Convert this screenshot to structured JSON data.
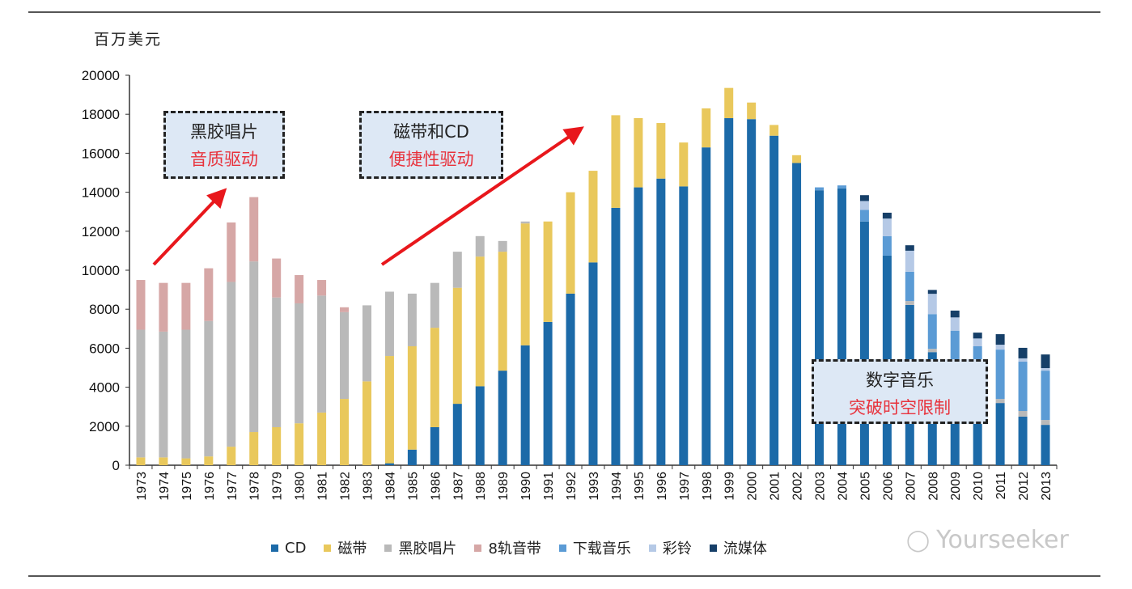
{
  "chart_data": {
    "type": "bar",
    "stacked": true,
    "ylabel": "百万美元",
    "ylim": [
      0,
      20000
    ],
    "yticks": [
      0,
      2000,
      4000,
      6000,
      8000,
      10000,
      12000,
      14000,
      16000,
      18000,
      20000
    ],
    "grid": false,
    "legend_position": "bottom",
    "categories": [
      "1973",
      "1974",
      "1975",
      "1976",
      "1977",
      "1978",
      "1979",
      "1980",
      "1981",
      "1982",
      "1983",
      "1984",
      "1985",
      "1986",
      "1987",
      "1988",
      "1989",
      "1990",
      "1991",
      "1992",
      "1993",
      "1994",
      "1995",
      "1996",
      "1997",
      "1998",
      "1999",
      "2000",
      "2001",
      "2002",
      "2003",
      "2004",
      "2005",
      "2006",
      "2007",
      "2008",
      "2009",
      "2010",
      "2011",
      "2012",
      "2013"
    ],
    "series": [
      {
        "name": "CD",
        "color": "#1c6aa8",
        "values": [
          0,
          0,
          0,
          0,
          0,
          0,
          0,
          0,
          0,
          0,
          0,
          100,
          800,
          1950,
          3150,
          4050,
          4850,
          6150,
          7350,
          8800,
          10400,
          13200,
          14250,
          14700,
          14300,
          16300,
          17800,
          17750,
          16900,
          15500,
          14100,
          14200,
          12500,
          10750,
          8220,
          5800,
          4300,
          3400,
          3190,
          2490,
          2070
        ]
      },
      {
        "name": "磁带",
        "color": "#e9c85c",
        "values": [
          400,
          400,
          350,
          450,
          950,
          1700,
          1950,
          2150,
          2700,
          3400,
          4300,
          5500,
          5300,
          5100,
          5950,
          6650,
          6100,
          6250,
          5150,
          5200,
          4700,
          4750,
          3550,
          2850,
          2250,
          2000,
          1550,
          850,
          550,
          400,
          0,
          0,
          0,
          0,
          0,
          0,
          0,
          0,
          0,
          0,
          0
        ]
      },
      {
        "name": "黑胶唱片",
        "color": "#b9b9b9",
        "values": [
          6550,
          6450,
          6600,
          6950,
          8450,
          8750,
          6650,
          6150,
          6000,
          4450,
          3900,
          3300,
          2700,
          2300,
          1850,
          1050,
          550,
          100,
          0,
          0,
          0,
          0,
          0,
          0,
          0,
          0,
          0,
          0,
          0,
          0,
          0,
          0,
          0,
          0,
          200,
          170,
          200,
          200,
          210,
          290,
          250
        ]
      },
      {
        "name": "8轨音带",
        "color": "#d6a7a6",
        "values": [
          2550,
          2500,
          2400,
          2700,
          3050,
          3300,
          2000,
          1450,
          800,
          250,
          0,
          0,
          0,
          0,
          0,
          0,
          0,
          0,
          0,
          0,
          0,
          0,
          0,
          0,
          0,
          0,
          0,
          0,
          0,
          0,
          0,
          0,
          0,
          0,
          0,
          0,
          0,
          0,
          0,
          0,
          0
        ]
      },
      {
        "name": "下载音乐",
        "color": "#5b9bd5",
        "values": [
          0,
          0,
          0,
          0,
          0,
          0,
          0,
          0,
          0,
          0,
          0,
          0,
          0,
          0,
          0,
          0,
          0,
          0,
          0,
          0,
          0,
          0,
          0,
          0,
          0,
          0,
          0,
          0,
          0,
          0,
          150,
          150,
          600,
          1000,
          1500,
          1780,
          2400,
          2500,
          2530,
          2530,
          2530
        ]
      },
      {
        "name": "彩铃",
        "color": "#b5c9e6",
        "values": [
          0,
          0,
          0,
          0,
          0,
          0,
          0,
          0,
          0,
          0,
          0,
          0,
          0,
          0,
          0,
          0,
          0,
          0,
          0,
          0,
          0,
          0,
          0,
          0,
          0,
          0,
          0,
          0,
          0,
          0,
          0,
          0,
          450,
          900,
          1080,
          1040,
          680,
          400,
          250,
          170,
          130
        ]
      },
      {
        "name": "流媒体",
        "color": "#163f68",
        "values": [
          0,
          0,
          0,
          0,
          0,
          0,
          0,
          0,
          0,
          0,
          0,
          0,
          0,
          0,
          0,
          0,
          0,
          0,
          0,
          0,
          0,
          0,
          0,
          0,
          0,
          0,
          0,
          0,
          0,
          0,
          0,
          0,
          300,
          300,
          280,
          200,
          350,
          300,
          540,
          540,
          700
        ]
      }
    ],
    "annotations": [
      {
        "line1": "黑胶唱片",
        "line2": "音质驱动"
      },
      {
        "line1": "磁带和CD",
        "line2": "便捷性驱动"
      },
      {
        "line1": "数字音乐",
        "line2": "突破时空限制"
      }
    ]
  },
  "watermark": "Yourseeker"
}
